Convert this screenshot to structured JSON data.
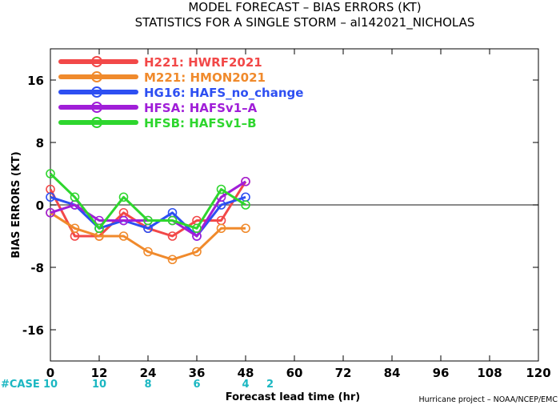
{
  "chart_data": {
    "type": "line",
    "title": "MODEL FORECAST – BIAS ERRORS (KT)",
    "subtitle": "STATISTICS FOR A SINGLE STORM – al142021_NICHOLAS",
    "xlabel": "Forecast lead time (hr)",
    "ylabel": "BIAS ERRORS (KT)",
    "xlim": [
      0,
      120
    ],
    "ylim": [
      -20,
      20
    ],
    "xticks": [
      0,
      12,
      24,
      36,
      48,
      60,
      72,
      84,
      96,
      108,
      120
    ],
    "yticks": [
      -16,
      -8,
      0,
      8,
      16
    ],
    "zero_line": true,
    "grid": false,
    "legend_position": "top-left",
    "cases_label": "#CASE",
    "cases": [
      {
        "x": 0,
        "n": "10"
      },
      {
        "x": 12,
        "n": "10"
      },
      {
        "x": 24,
        "n": "8"
      },
      {
        "x": 36,
        "n": "6"
      },
      {
        "x": 48,
        "n": "4"
      }
    ],
    "extra_case": {
      "x": 54,
      "n": "2"
    },
    "credit": "Hurricane project – NOAA/NCEP/EMC",
    "series": [
      {
        "name": "H221:  HWRF2021",
        "color": "#f24848",
        "x": [
          0,
          6,
          12,
          18,
          24,
          30,
          36,
          42,
          48
        ],
        "y": [
          2,
          -4,
          -4,
          -1,
          -3,
          -4,
          -2,
          -2,
          3
        ]
      },
      {
        "name": "M221:  HMON2021",
        "color": "#f08a2c",
        "x": [
          0,
          6,
          12,
          18,
          24,
          30,
          36,
          42,
          48
        ],
        "y": [
          -1,
          -3,
          -4,
          -4,
          -6,
          -7,
          -6,
          -3,
          -3
        ]
      },
      {
        "name": "HG16:  HAFS_no_change",
        "color": "#2d4ff2",
        "x": [
          0,
          6,
          12,
          18,
          24,
          30,
          36,
          42,
          48
        ],
        "y": [
          1,
          0,
          -3,
          -2,
          -3,
          -1,
          -4,
          0,
          1
        ]
      },
      {
        "name": "HFSA:  HAFSv1–A",
        "color": "#a01ed8",
        "x": [
          0,
          6,
          12,
          18,
          24,
          30,
          36,
          42,
          48
        ],
        "y": [
          -1,
          0,
          -2,
          -2,
          -2,
          -2,
          -4,
          1,
          3
        ]
      },
      {
        "name": "HFSB:  HAFSv1–B",
        "color": "#2ed62e",
        "x": [
          0,
          6,
          12,
          18,
          24,
          30,
          36,
          42,
          48
        ],
        "y": [
          4,
          1,
          -3,
          1,
          -2,
          -2,
          -3,
          2,
          0
        ]
      }
    ]
  }
}
